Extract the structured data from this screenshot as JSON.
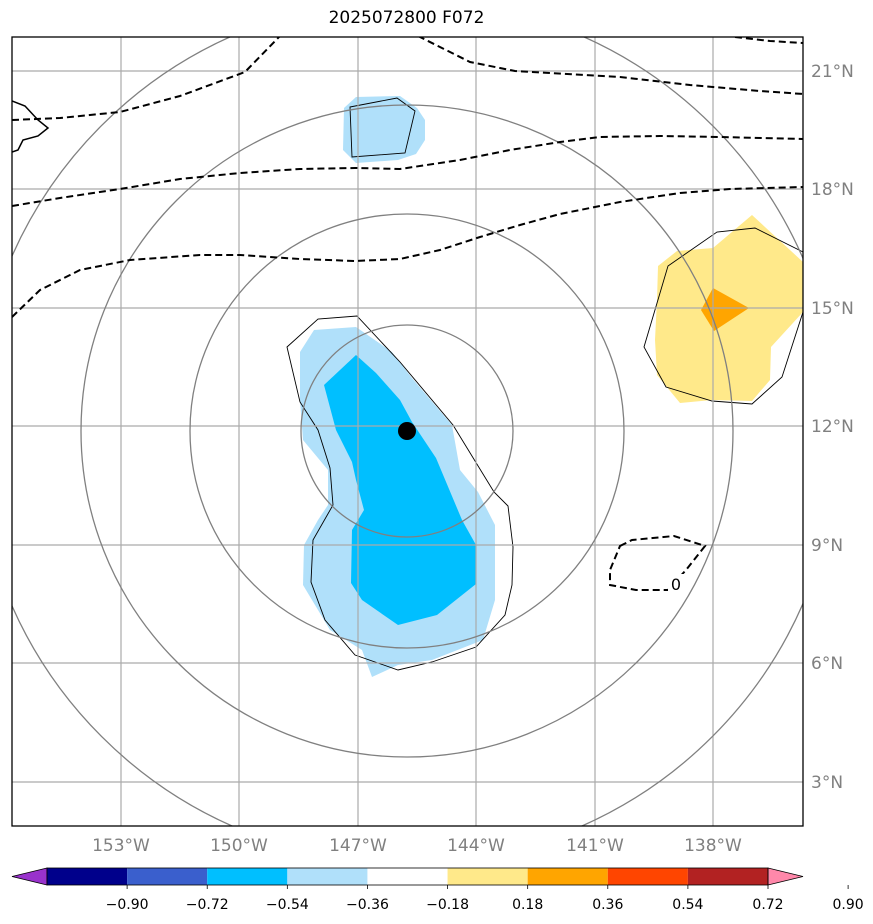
{
  "title": "2025072800 F072",
  "lon_labels": [
    "153°W",
    "150°W",
    "147°W",
    "144°W",
    "141°W",
    "138°W"
  ],
  "lat_labels": [
    "21°N",
    "18°N",
    "15°N",
    "12°N",
    "9°N",
    "6°N",
    "3°N"
  ],
  "contour_label": "0",
  "colorbar": {
    "ticks": [
      "−0.90",
      "−0.72",
      "−0.54",
      "−0.36",
      "−0.18",
      "0.18",
      "0.36",
      "0.54",
      "0.72",
      "0.90"
    ],
    "colors": [
      "#9932cc",
      "#00008b",
      "#3a5fcd",
      "#00bfff",
      "#b0e0fa",
      "#ffffff",
      "#ffe98a",
      "#ffa500",
      "#ff4500",
      "#b22222",
      "#ff88aa"
    ]
  },
  "colors": {
    "grid": "#aaaaaa",
    "circles": "#808080",
    "tick_label": "#808080",
    "storm_center": "#000000"
  }
}
